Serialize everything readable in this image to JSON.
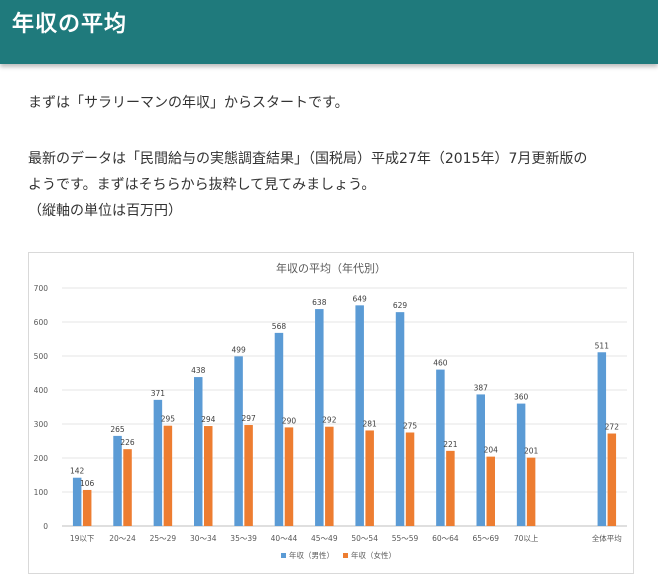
{
  "header": {
    "title": "年収の平均"
  },
  "intro": "まずは「サラリーマンの年収」からスタートです。",
  "body": {
    "line1": "最新のデータは「民間給与の実態調査結果」（国税局）平成27年（2015年）7月更新版の",
    "line2": "ようです。まずはそちらから抜粋して見てみましょう。",
    "line3": "（縦軸の単位は百万円）"
  },
  "colors": {
    "header_bg": "#1f7a7c",
    "male": "#5b9bd5",
    "female": "#ed7d31"
  },
  "chart_data": {
    "type": "bar",
    "title": "年収の平均（年代別）",
    "categories": [
      "19以下",
      "20～24",
      "25～29",
      "30～34",
      "35～39",
      "40～44",
      "45～49",
      "50～54",
      "55～59",
      "60～64",
      "65～69",
      "70以上",
      "",
      "全体平均"
    ],
    "series": [
      {
        "name": "年収（男性）",
        "values": [
          142,
          265,
          371,
          438,
          499,
          568,
          638,
          649,
          629,
          460,
          387,
          360,
          null,
          511
        ]
      },
      {
        "name": "年収（女性）",
        "values": [
          106,
          226,
          295,
          294,
          297,
          290,
          292,
          281,
          275,
          221,
          204,
          201,
          null,
          272
        ]
      }
    ],
    "ylim": [
      0,
      700
    ],
    "yticks": [
      0,
      100,
      200,
      300,
      400,
      500,
      600,
      700
    ],
    "xlabel": "",
    "ylabel": "",
    "legend": "bottom"
  }
}
